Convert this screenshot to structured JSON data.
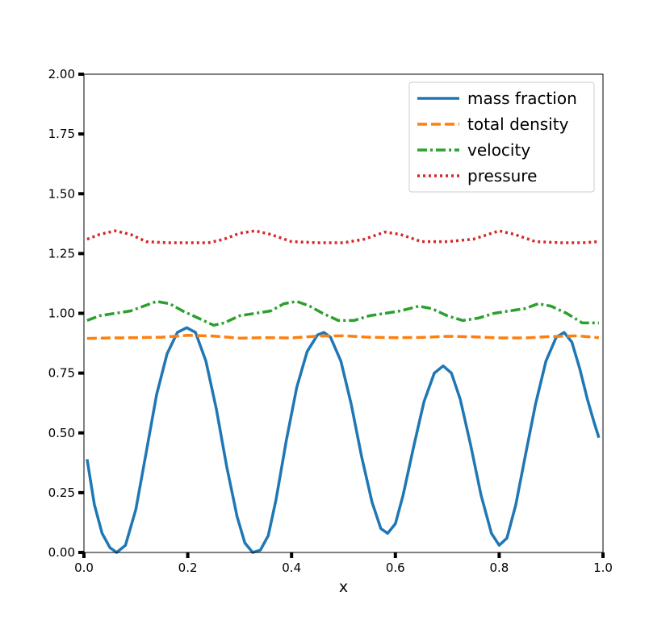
{
  "chart_data": {
    "type": "line",
    "xlabel": "x",
    "ylabel": "",
    "xlim": [
      0.0,
      1.0
    ],
    "ylim": [
      0.0,
      2.0
    ],
    "xticks": [
      "0.0",
      "0.2",
      "0.4",
      "0.6",
      "0.8",
      "1.0"
    ],
    "yticks": [
      "0.00",
      "0.25",
      "0.50",
      "0.75",
      "1.00",
      "1.25",
      "1.50",
      "1.75",
      "2.00"
    ],
    "legend_position": "upper-right",
    "grid": false,
    "series": [
      {
        "name": "mass fraction",
        "color": "#1f77b4",
        "style": "solid",
        "points": [
          [
            0.006,
            0.39
          ],
          [
            0.02,
            0.2
          ],
          [
            0.035,
            0.08
          ],
          [
            0.05,
            0.02
          ],
          [
            0.063,
            0.0
          ],
          [
            0.08,
            0.03
          ],
          [
            0.1,
            0.18
          ],
          [
            0.12,
            0.42
          ],
          [
            0.14,
            0.66
          ],
          [
            0.16,
            0.83
          ],
          [
            0.18,
            0.92
          ],
          [
            0.198,
            0.94
          ],
          [
            0.215,
            0.92
          ],
          [
            0.235,
            0.8
          ],
          [
            0.255,
            0.6
          ],
          [
            0.275,
            0.36
          ],
          [
            0.295,
            0.15
          ],
          [
            0.31,
            0.04
          ],
          [
            0.325,
            0.0
          ],
          [
            0.34,
            0.01
          ],
          [
            0.355,
            0.07
          ],
          [
            0.37,
            0.22
          ],
          [
            0.39,
            0.47
          ],
          [
            0.41,
            0.69
          ],
          [
            0.43,
            0.84
          ],
          [
            0.45,
            0.91
          ],
          [
            0.462,
            0.92
          ],
          [
            0.475,
            0.9
          ],
          [
            0.495,
            0.8
          ],
          [
            0.515,
            0.62
          ],
          [
            0.535,
            0.4
          ],
          [
            0.555,
            0.21
          ],
          [
            0.572,
            0.1
          ],
          [
            0.585,
            0.08
          ],
          [
            0.6,
            0.12
          ],
          [
            0.615,
            0.24
          ],
          [
            0.635,
            0.44
          ],
          [
            0.655,
            0.63
          ],
          [
            0.675,
            0.75
          ],
          [
            0.692,
            0.78
          ],
          [
            0.708,
            0.75
          ],
          [
            0.725,
            0.64
          ],
          [
            0.745,
            0.45
          ],
          [
            0.765,
            0.24
          ],
          [
            0.785,
            0.08
          ],
          [
            0.8,
            0.03
          ],
          [
            0.815,
            0.06
          ],
          [
            0.832,
            0.2
          ],
          [
            0.85,
            0.4
          ],
          [
            0.87,
            0.62
          ],
          [
            0.89,
            0.8
          ],
          [
            0.91,
            0.9
          ],
          [
            0.925,
            0.92
          ],
          [
            0.94,
            0.88
          ],
          [
            0.955,
            0.77
          ],
          [
            0.97,
            0.64
          ],
          [
            0.982,
            0.55
          ],
          [
            0.992,
            0.48
          ]
        ]
      },
      {
        "name": "total density",
        "color": "#ff7f0e",
        "style": "dashed",
        "points": [
          [
            0.006,
            0.895
          ],
          [
            0.05,
            0.897
          ],
          [
            0.1,
            0.898
          ],
          [
            0.15,
            0.9
          ],
          [
            0.2,
            0.908
          ],
          [
            0.25,
            0.905
          ],
          [
            0.3,
            0.896
          ],
          [
            0.35,
            0.898
          ],
          [
            0.4,
            0.897
          ],
          [
            0.45,
            0.905
          ],
          [
            0.5,
            0.906
          ],
          [
            0.55,
            0.9
          ],
          [
            0.6,
            0.898
          ],
          [
            0.65,
            0.899
          ],
          [
            0.7,
            0.904
          ],
          [
            0.75,
            0.902
          ],
          [
            0.8,
            0.897
          ],
          [
            0.85,
            0.897
          ],
          [
            0.9,
            0.903
          ],
          [
            0.95,
            0.906
          ],
          [
            0.992,
            0.898
          ]
        ]
      },
      {
        "name": "velocity",
        "color": "#2ca02c",
        "style": "dashdot",
        "points": [
          [
            0.006,
            0.97
          ],
          [
            0.03,
            0.99
          ],
          [
            0.06,
            1.0
          ],
          [
            0.09,
            1.01
          ],
          [
            0.115,
            1.03
          ],
          [
            0.14,
            1.05
          ],
          [
            0.165,
            1.04
          ],
          [
            0.19,
            1.01
          ],
          [
            0.22,
            0.98
          ],
          [
            0.25,
            0.95
          ],
          [
            0.27,
            0.96
          ],
          [
            0.3,
            0.99
          ],
          [
            0.33,
            1.0
          ],
          [
            0.36,
            1.01
          ],
          [
            0.385,
            1.04
          ],
          [
            0.41,
            1.05
          ],
          [
            0.435,
            1.03
          ],
          [
            0.46,
            1.0
          ],
          [
            0.49,
            0.97
          ],
          [
            0.52,
            0.97
          ],
          [
            0.55,
            0.99
          ],
          [
            0.58,
            1.0
          ],
          [
            0.61,
            1.01
          ],
          [
            0.645,
            1.03
          ],
          [
            0.67,
            1.02
          ],
          [
            0.7,
            0.99
          ],
          [
            0.73,
            0.97
          ],
          [
            0.76,
            0.98
          ],
          [
            0.79,
            1.0
          ],
          [
            0.82,
            1.01
          ],
          [
            0.85,
            1.02
          ],
          [
            0.875,
            1.04
          ],
          [
            0.9,
            1.03
          ],
          [
            0.93,
            1.0
          ],
          [
            0.96,
            0.96
          ],
          [
            0.992,
            0.96
          ]
        ]
      },
      {
        "name": "pressure",
        "color": "#d62728",
        "style": "dotted",
        "points": [
          [
            0.006,
            1.31
          ],
          [
            0.03,
            1.33
          ],
          [
            0.06,
            1.345
          ],
          [
            0.09,
            1.33
          ],
          [
            0.12,
            1.3
          ],
          [
            0.16,
            1.295
          ],
          [
            0.2,
            1.295
          ],
          [
            0.24,
            1.295
          ],
          [
            0.27,
            1.31
          ],
          [
            0.3,
            1.335
          ],
          [
            0.33,
            1.345
          ],
          [
            0.36,
            1.33
          ],
          [
            0.4,
            1.3
          ],
          [
            0.45,
            1.295
          ],
          [
            0.5,
            1.295
          ],
          [
            0.54,
            1.31
          ],
          [
            0.58,
            1.34
          ],
          [
            0.61,
            1.33
          ],
          [
            0.65,
            1.3
          ],
          [
            0.7,
            1.3
          ],
          [
            0.75,
            1.31
          ],
          [
            0.8,
            1.345
          ],
          [
            0.83,
            1.33
          ],
          [
            0.87,
            1.3
          ],
          [
            0.92,
            1.295
          ],
          [
            0.96,
            1.295
          ],
          [
            0.992,
            1.3
          ]
        ]
      }
    ]
  }
}
